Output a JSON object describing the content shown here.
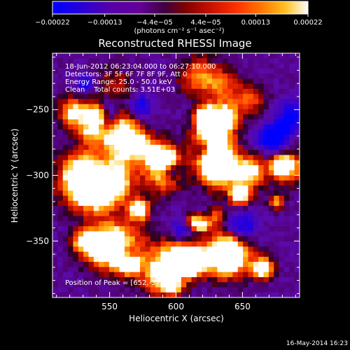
{
  "chart_data": {
    "type": "heatmap",
    "title": "Reconstructed RHESSI Image",
    "xlabel": "Heliocentric X (arcsec)",
    "ylabel": "Heliocentric Y (arcsec)",
    "x_range": [
      507,
      693
    ],
    "y_range": [
      -393,
      -207
    ],
    "x_ticks": [
      550,
      600,
      650
    ],
    "y_ticks": [
      -250,
      -300,
      -350
    ],
    "x_tick_labels": [
      "550",
      "600",
      "650"
    ],
    "y_tick_labels": [
      "−250",
      "−300",
      "−350"
    ],
    "colorbar": {
      "range": [
        -0.00022,
        0.00022
      ],
      "ticks": [
        -0.00022,
        -0.00013,
        -4.4e-05,
        4.4e-05,
        0.00013,
        0.00022
      ],
      "tick_labels": [
        "−0.00022",
        "−0.00013",
        "−4.4e−05",
        "4.4e−05",
        "0.00013",
        "0.00022"
      ],
      "units_label": "(photons cm⁻² s⁻¹ asec⁻²)",
      "colors": [
        "#0000ff",
        "#3300cc",
        "#660099",
        "#6f00aa",
        "#8a0000",
        "#c81000",
        "#ff3000",
        "#ff7800",
        "#ffb400",
        "#ffe640",
        "#ffffff"
      ]
    },
    "info_lines": [
      "18-Jun-2012 06:23:04.000 to 06:27:10.000",
      "Detectors: 3F 5F 6F 7F 8F 9F, Att 0",
      "Energy Range: 25.0 - 50.0 keV",
      "Clean    Total counts: 3.51E+03"
    ],
    "peak_label": "Position of Peak = [652,-371]",
    "peak_position": [
      652,
      -371
    ],
    "grid": false
  },
  "footer": {
    "timestamp": "16-May-2014 16:23"
  }
}
